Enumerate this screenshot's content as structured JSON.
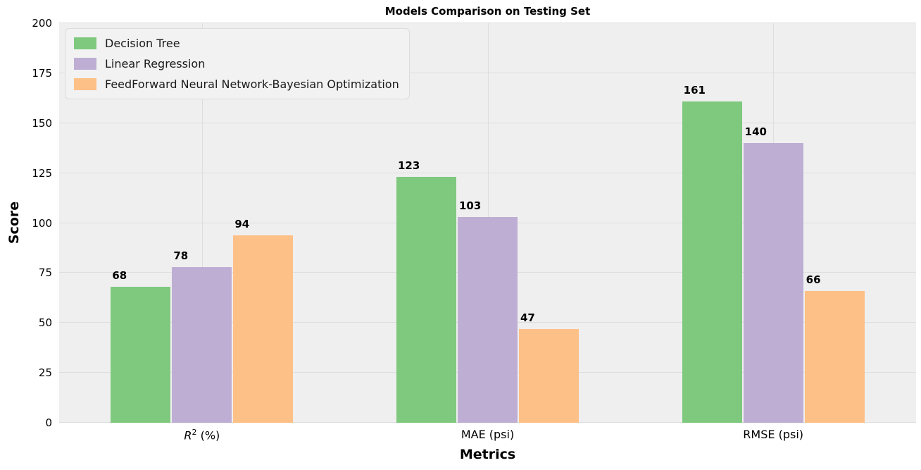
{
  "chart_data": {
    "type": "bar",
    "title": "Models Comparison on Testing Set",
    "xlabel": "Metrics",
    "ylabel": "Score",
    "ylim": [
      0,
      200
    ],
    "yticks": [
      0,
      25,
      50,
      75,
      100,
      125,
      150,
      175,
      200
    ],
    "grid": true,
    "legend_position": "upper left",
    "plot_bg_color": "#efefef",
    "grid_color": "#dedede",
    "categories": [
      "R² (%)",
      "MAE (psi)",
      "RMSE (psi)"
    ],
    "categories_rich": [
      {
        "italic": "R",
        "sup": "2",
        "text": " (%)"
      },
      {
        "text": "MAE (psi)"
      },
      {
        "text": "RMSE (psi)"
      }
    ],
    "series": [
      {
        "name": "Decision Tree",
        "color": "#7fc97f",
        "values": [
          68,
          123,
          161
        ]
      },
      {
        "name": "Linear Regression",
        "color": "#beaed4",
        "values": [
          78,
          103,
          140
        ]
      },
      {
        "name": "FeedForward Neural Network-Bayesian Optimization",
        "color": "#fdc086",
        "values": [
          94,
          47,
          66
        ]
      }
    ]
  }
}
